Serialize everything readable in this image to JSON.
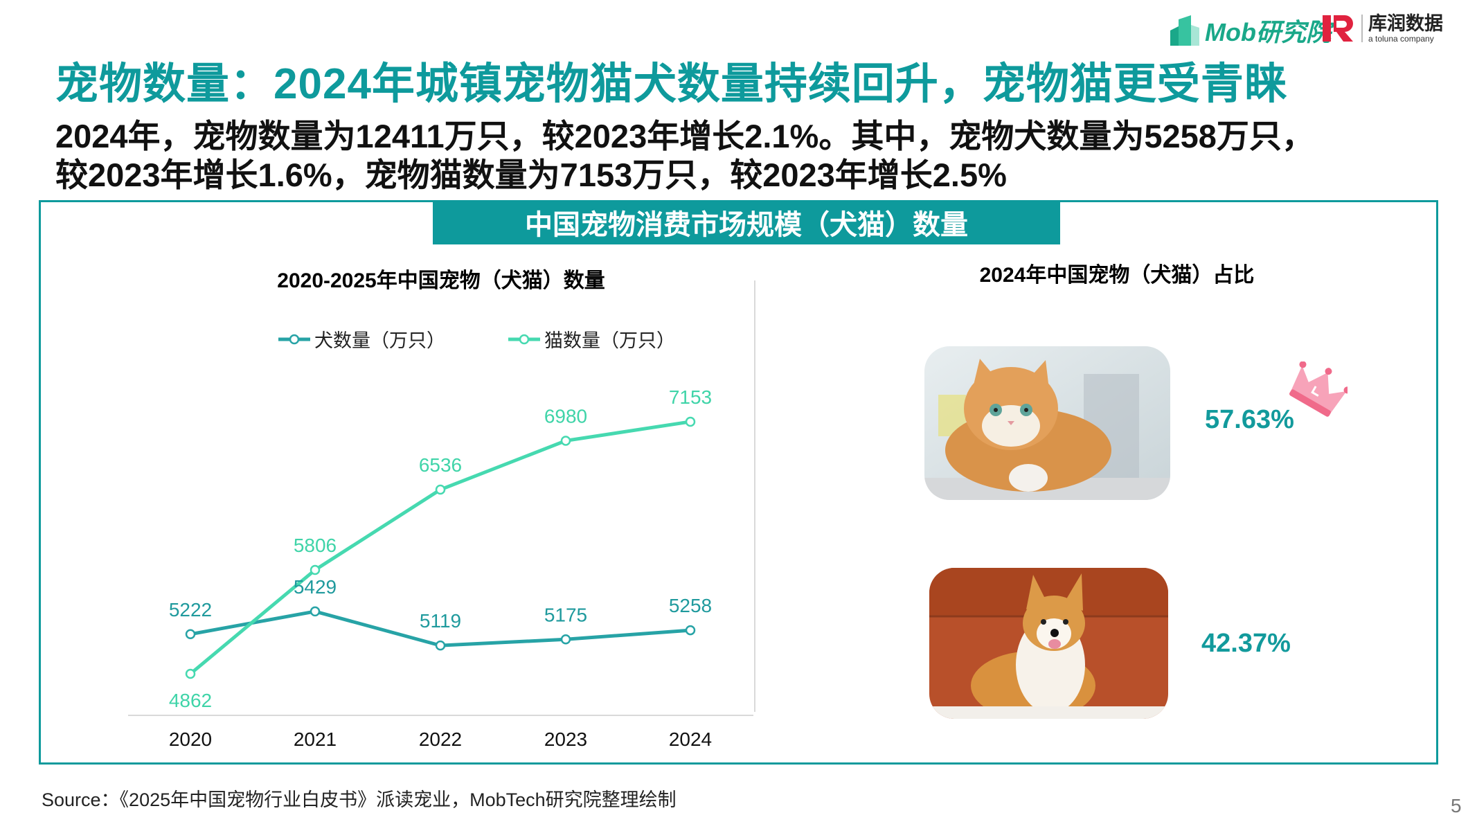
{
  "header": {
    "title": "宠物数量：2024年城镇宠物猫犬数量持续回升，宠物猫更受青睐",
    "summary_line1": "2024年，宠物数量为12411万只，较2023年增长2.1%。其中，宠物犬数量为5258万只，",
    "summary_line2": "较2023年增长1.6%，宠物猫数量为7153万只，较2023年增长2.5%"
  },
  "logos": {
    "mob": "Mob研究院",
    "kr_name": "库润数据",
    "kr_tagline": "a toluna company"
  },
  "banner": {
    "label": "中国宠物消费市场规模（犬猫）数量"
  },
  "left_panel": {
    "title": "2020-2025年中国宠物（犬猫）数量",
    "legend": [
      {
        "label": "犬数量（万只）",
        "color": "#27a3a6"
      },
      {
        "label": "猫数量（万只）",
        "color": "#46d9b0"
      }
    ]
  },
  "right_panel": {
    "title": "2024年中国宠物（犬猫）占比",
    "cat_share": "57.63%",
    "dog_share": "42.37%",
    "cat_image": "cat-photo",
    "dog_image": "corgi-photo",
    "crown_icon": "crown-icon"
  },
  "chart_data": [
    {
      "type": "line",
      "title": "2020-2025年中国宠物（犬猫）数量",
      "categories": [
        "2020",
        "2021",
        "2022",
        "2023",
        "2024"
      ],
      "series": [
        {
          "name": "犬数量（万只）",
          "values": [
            5222,
            5429,
            5119,
            5175,
            5258
          ],
          "color": "#27a3a6"
        },
        {
          "name": "猫数量（万只）",
          "values": [
            4862,
            5806,
            6536,
            6980,
            7153
          ],
          "color": "#46d9b0"
        }
      ],
      "xlabel": "",
      "ylabel": "",
      "y_axis_visible": false,
      "grid": false,
      "legend_position": "top",
      "data_labels": true
    },
    {
      "type": "pie",
      "title": "2024年中国宠物（犬猫）占比",
      "categories": [
        "猫",
        "犬"
      ],
      "values": [
        57.63,
        42.37
      ],
      "unit": "%"
    }
  ],
  "footer": {
    "source": "Source：《2025年中国宠物行业白皮书》派读宠业，MobTech研究院整理绘制",
    "page_number": "5"
  },
  "colors": {
    "accent": "#0e9a9c",
    "dog_line": "#27a3a6",
    "cat_line": "#46d9b0",
    "crown": "#f06a8a"
  }
}
